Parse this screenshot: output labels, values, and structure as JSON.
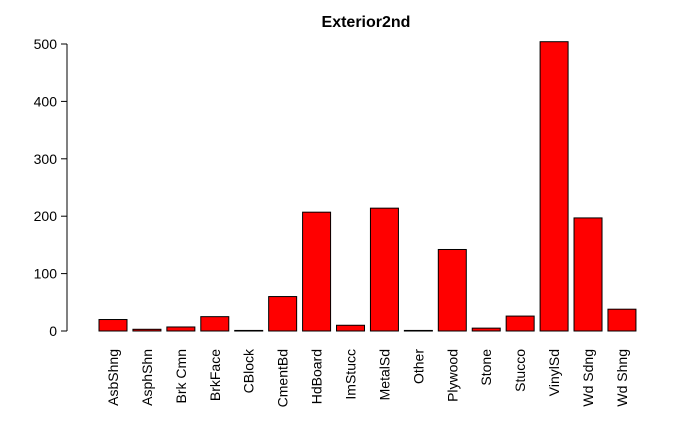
{
  "chart_data": {
    "type": "bar",
    "title": "Exterior2nd",
    "xlabel": "",
    "ylabel": "",
    "categories": [
      "AsbShng",
      "AsphShn",
      "Brk Cmn",
      "BrkFace",
      "CBlock",
      "CmentBd",
      "HdBoard",
      "ImStucc",
      "MetalSd",
      "Other",
      "Plywood",
      "Stone",
      "Stucco",
      "VinylSd",
      "Wd Sdng",
      "Wd Shng"
    ],
    "values": [
      20,
      3,
      7,
      25,
      1,
      60,
      207,
      10,
      214,
      1,
      142,
      5,
      26,
      504,
      197,
      38
    ],
    "ylim": [
      0,
      500
    ],
    "yticks": [
      0,
      100,
      200,
      300,
      400,
      500
    ],
    "bar_color": "#ff0000",
    "bar_border_color": "#000000",
    "grid": false,
    "legend": "none"
  }
}
